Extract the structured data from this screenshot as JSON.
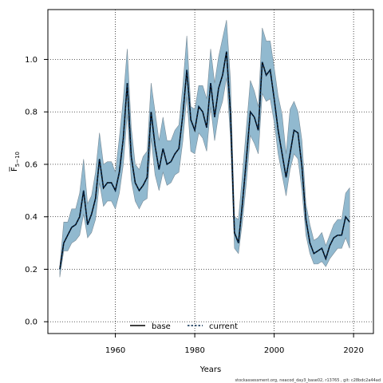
{
  "chart_data": {
    "type": "line",
    "xlabel": "Years",
    "ylabel": "F",
    "ylabel_sub": "5−10",
    "xlim": [
      1943,
      2025
    ],
    "ylim": [
      -0.045,
      1.19
    ],
    "x_ticks": [
      1960,
      1980,
      2000,
      2020
    ],
    "y_ticks": [
      0.0,
      0.2,
      0.4,
      0.6,
      0.8,
      1.0
    ],
    "grid": true,
    "legend_position": "bottom-center",
    "colors": {
      "band": "#91b9cf",
      "band_edge": "#7a8c98",
      "base": "#000000",
      "current": "#00264d"
    },
    "x": [
      1946,
      1947,
      1948,
      1949,
      1950,
      1951,
      1952,
      1953,
      1954,
      1955,
      1956,
      1957,
      1958,
      1959,
      1960,
      1961,
      1962,
      1963,
      1964,
      1965,
      1966,
      1967,
      1968,
      1969,
      1970,
      1971,
      1972,
      1973,
      1974,
      1975,
      1976,
      1977,
      1978,
      1979,
      1980,
      1981,
      1982,
      1983,
      1984,
      1985,
      1986,
      1987,
      1988,
      1989,
      1990,
      1991,
      1992,
      1993,
      1994,
      1995,
      1996,
      1997,
      1998,
      1999,
      2000,
      2001,
      2002,
      2003,
      2004,
      2005,
      2006,
      2007,
      2008,
      2009,
      2010,
      2011,
      2012,
      2013,
      2014,
      2015,
      2016,
      2017,
      2018,
      2019
    ],
    "series": [
      {
        "name": "base",
        "values": [
          0.2,
          0.3,
          0.33,
          0.36,
          0.37,
          0.4,
          0.5,
          0.37,
          0.41,
          0.47,
          0.62,
          0.51,
          0.53,
          0.53,
          0.5,
          0.57,
          0.7,
          0.91,
          0.63,
          0.53,
          0.5,
          0.52,
          0.55,
          0.8,
          0.67,
          0.58,
          0.66,
          0.6,
          0.61,
          0.64,
          0.66,
          0.79,
          0.96,
          0.77,
          0.73,
          0.82,
          0.8,
          0.74,
          0.91,
          0.78,
          0.89,
          0.94,
          1.03,
          0.79,
          0.34,
          0.3,
          0.45,
          0.62,
          0.8,
          0.78,
          0.73,
          0.99,
          0.94,
          0.96,
          0.85,
          0.73,
          0.64,
          0.55,
          0.64,
          0.73,
          0.72,
          0.59,
          0.39,
          0.3,
          0.26,
          0.27,
          0.28,
          0.24,
          0.29,
          0.32,
          0.33,
          0.33,
          0.4,
          0.38
        ]
      },
      {
        "name": "current",
        "values": [
          0.2,
          0.3,
          0.33,
          0.36,
          0.37,
          0.4,
          0.5,
          0.37,
          0.41,
          0.47,
          0.62,
          0.51,
          0.53,
          0.53,
          0.5,
          0.57,
          0.7,
          0.91,
          0.63,
          0.53,
          0.5,
          0.52,
          0.55,
          0.8,
          0.67,
          0.58,
          0.66,
          0.6,
          0.61,
          0.64,
          0.66,
          0.79,
          0.96,
          0.77,
          0.73,
          0.82,
          0.8,
          0.74,
          0.91,
          0.78,
          0.89,
          0.94,
          1.03,
          0.79,
          0.34,
          0.3,
          0.45,
          0.62,
          0.8,
          0.78,
          0.73,
          0.99,
          0.94,
          0.96,
          0.85,
          0.73,
          0.64,
          0.55,
          0.64,
          0.73,
          0.72,
          0.59,
          0.39,
          0.3,
          0.26,
          0.27,
          0.28,
          0.24,
          0.29,
          0.32,
          0.33,
          0.33,
          0.4,
          0.38
        ]
      }
    ],
    "band_upper": [
      0.21,
      0.38,
      0.38,
      0.43,
      0.43,
      0.49,
      0.62,
      0.45,
      0.48,
      0.57,
      0.72,
      0.6,
      0.61,
      0.61,
      0.57,
      0.7,
      0.85,
      1.04,
      0.74,
      0.6,
      0.58,
      0.63,
      0.65,
      0.91,
      0.8,
      0.69,
      0.78,
      0.69,
      0.69,
      0.73,
      0.75,
      0.9,
      1.09,
      0.82,
      0.81,
      0.9,
      0.9,
      0.85,
      1.04,
      0.91,
      1.01,
      1.08,
      1.15,
      0.92,
      0.4,
      0.39,
      0.56,
      0.74,
      0.92,
      0.88,
      0.82,
      1.12,
      1.07,
      1.07,
      0.97,
      0.86,
      0.79,
      0.64,
      0.81,
      0.84,
      0.8,
      0.69,
      0.45,
      0.37,
      0.31,
      0.32,
      0.34,
      0.29,
      0.33,
      0.37,
      0.39,
      0.39,
      0.49,
      0.51
    ],
    "band_lower": [
      0.17,
      0.27,
      0.27,
      0.3,
      0.31,
      0.33,
      0.41,
      0.32,
      0.34,
      0.39,
      0.53,
      0.44,
      0.46,
      0.46,
      0.43,
      0.49,
      0.6,
      0.79,
      0.54,
      0.46,
      0.43,
      0.46,
      0.47,
      0.7,
      0.56,
      0.5,
      0.57,
      0.52,
      0.53,
      0.56,
      0.57,
      0.69,
      0.86,
      0.65,
      0.64,
      0.72,
      0.7,
      0.65,
      0.82,
      0.69,
      0.79,
      0.84,
      0.93,
      0.7,
      0.28,
      0.26,
      0.38,
      0.53,
      0.71,
      0.68,
      0.64,
      0.87,
      0.84,
      0.85,
      0.76,
      0.64,
      0.56,
      0.48,
      0.58,
      0.64,
      0.62,
      0.5,
      0.33,
      0.26,
      0.22,
      0.22,
      0.23,
      0.21,
      0.24,
      0.26,
      0.28,
      0.28,
      0.32,
      0.28
    ]
  },
  "legend": {
    "base_label": "base",
    "current_label": "current"
  },
  "footer": "stockassessment.org,  neacod_day3_base02,  r13765 ,  git: c28bdc2a44ad"
}
